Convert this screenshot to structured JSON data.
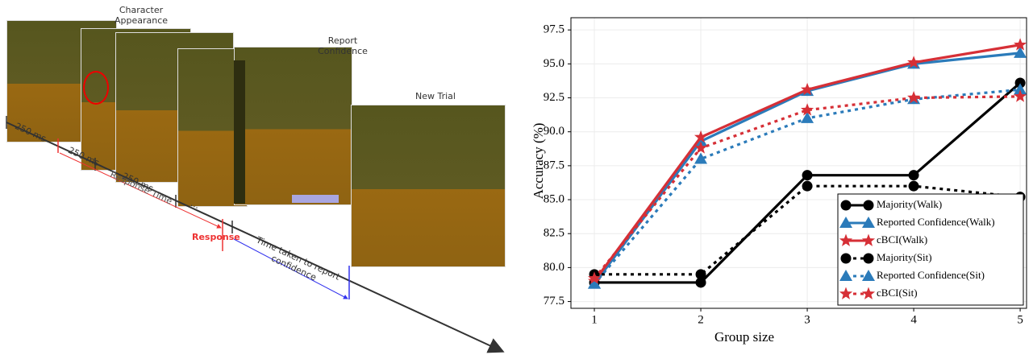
{
  "diagram": {
    "frames": [
      "Character Appearance",
      "Report Confidence",
      "New Trial"
    ],
    "intervals": [
      "250 ms",
      "250 ms",
      "250 ms",
      "..."
    ],
    "response_time": "Response Time",
    "response": "Response",
    "confidence_time": "Time taken to report confidence"
  },
  "chart_data": {
    "type": "line",
    "x": [
      1,
      2,
      3,
      4,
      5
    ],
    "xlabel": "Group size",
    "ylabel": "Accuracy (%)",
    "xlim": [
      0.78,
      5.06
    ],
    "ylim": [
      77.0,
      98.4
    ],
    "xticks": [
      1,
      2,
      3,
      4,
      5
    ],
    "yticks": [
      77.5,
      {
        "value": 80,
        "label": "80.0"
      },
      82.5,
      {
        "value": 85,
        "label": "85.0"
      },
      87.5,
      {
        "value": 90,
        "label": "90.0"
      },
      92.5,
      {
        "value": 95,
        "label": "95.0"
      },
      97.5
    ],
    "grid": true,
    "legend": "lower right",
    "series": [
      {
        "name": "Majority(Walk)",
        "color": "#000000",
        "marker": "circle",
        "dashed": false,
        "values": [
          78.9,
          78.9,
          86.8,
          86.8,
          93.6
        ]
      },
      {
        "name": "Reported Confidence(Walk)",
        "color": "#2b7bba",
        "marker": "triangle",
        "dashed": false,
        "values": [
          78.8,
          89.3,
          93.0,
          95.0,
          95.8
        ]
      },
      {
        "name": "cBCI(Walk)",
        "color": "#d62f36",
        "marker": "star",
        "dashed": false,
        "values": [
          79.0,
          89.6,
          93.1,
          95.1,
          96.4
        ]
      },
      {
        "name": "Majority(Sit)",
        "color": "#000000",
        "marker": "circle",
        "dashed": true,
        "values": [
          79.5,
          79.5,
          86.0,
          86.0,
          85.2
        ]
      },
      {
        "name": "Reported Confidence(Sit)",
        "color": "#2b7bba",
        "marker": "triangle",
        "dashed": true,
        "values": [
          78.8,
          88.0,
          91.0,
          92.4,
          93.1
        ]
      },
      {
        "name": "cBCI(Sit)",
        "color": "#d62f36",
        "marker": "star",
        "dashed": true,
        "values": [
          79.2,
          88.8,
          91.6,
          92.5,
          92.6
        ]
      }
    ]
  }
}
